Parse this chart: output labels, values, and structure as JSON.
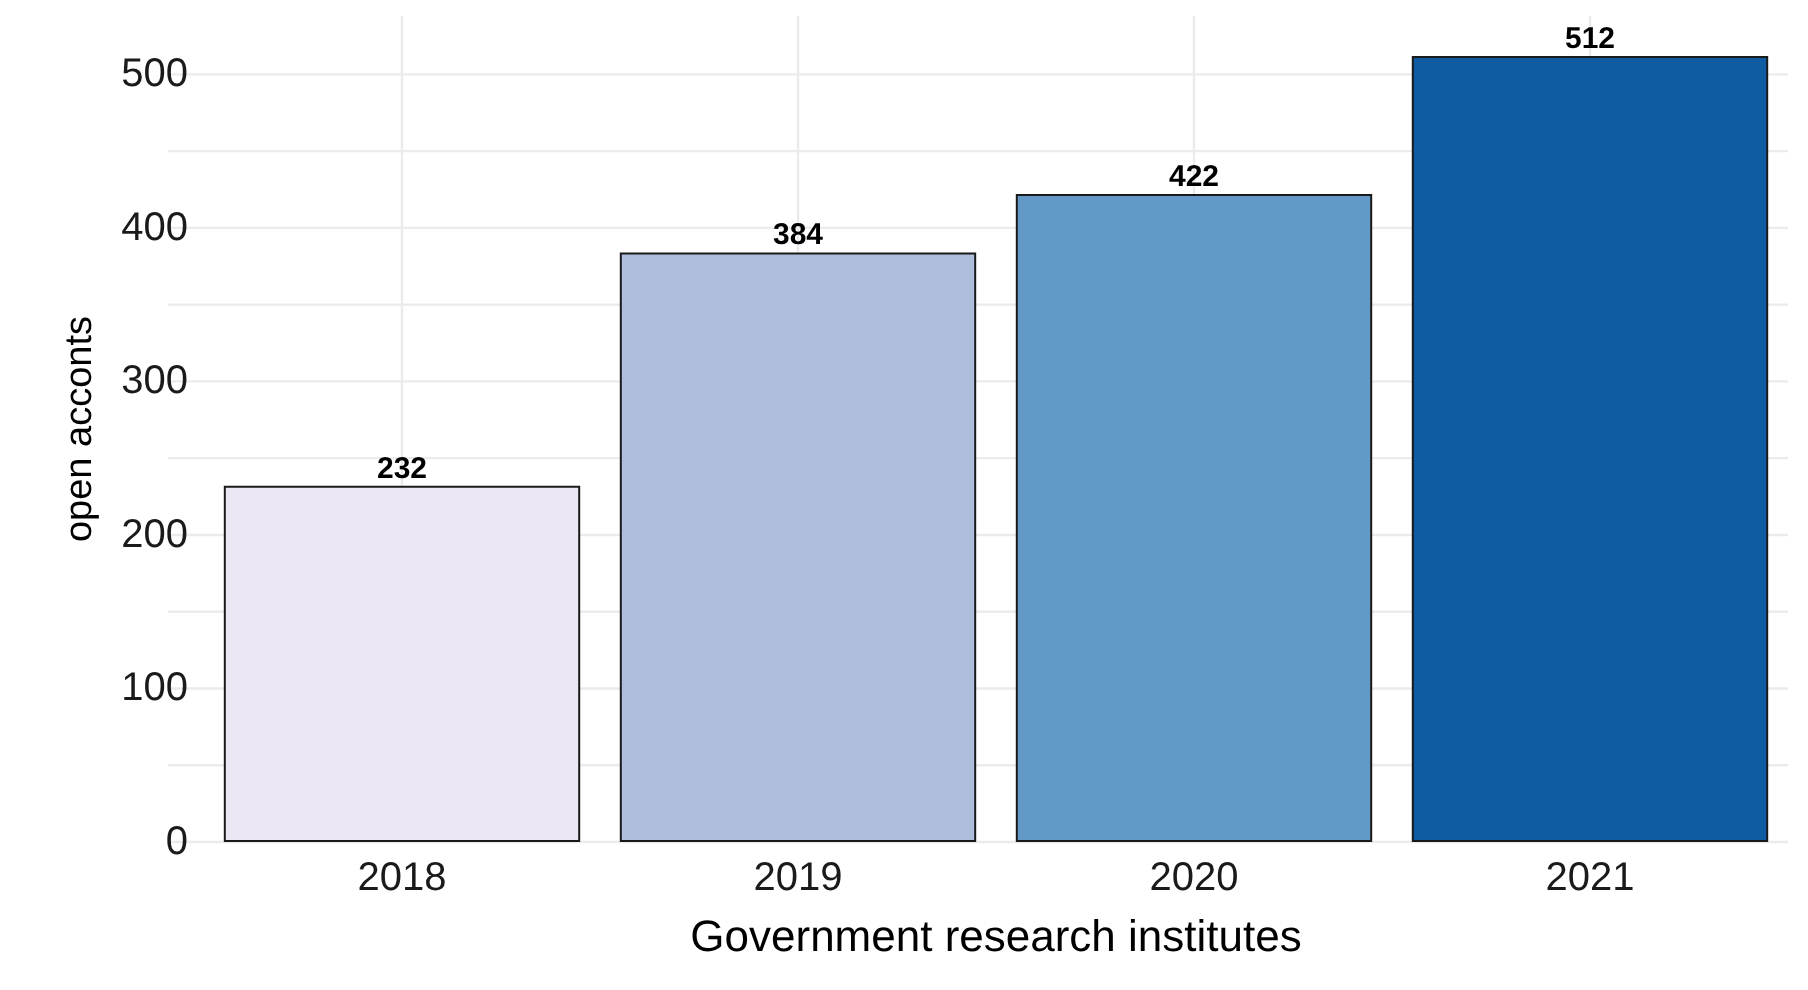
{
  "chart_data": {
    "type": "bar",
    "xlabel": "Government research institutes",
    "ylabel": "open acconts",
    "categories": [
      "2018",
      "2019",
      "2020",
      "2021"
    ],
    "values": [
      232,
      384,
      422,
      512
    ],
    "colors": [
      "#ece7f2",
      "#afbedc",
      "#6399c7",
      "#0f5ca3"
    ],
    "ylim": [
      0,
      538
    ],
    "yticks": [
      0,
      {
        "value": 50,
        "label": null
      },
      100,
      {
        "value": 150,
        "label": null
      },
      200,
      {
        "value": 250,
        "label": null
      },
      300,
      {
        "value": 350,
        "label": null
      },
      400,
      {
        "value": 450,
        "label": null
      },
      500
    ],
    "grid": true,
    "data_labels": true
  }
}
